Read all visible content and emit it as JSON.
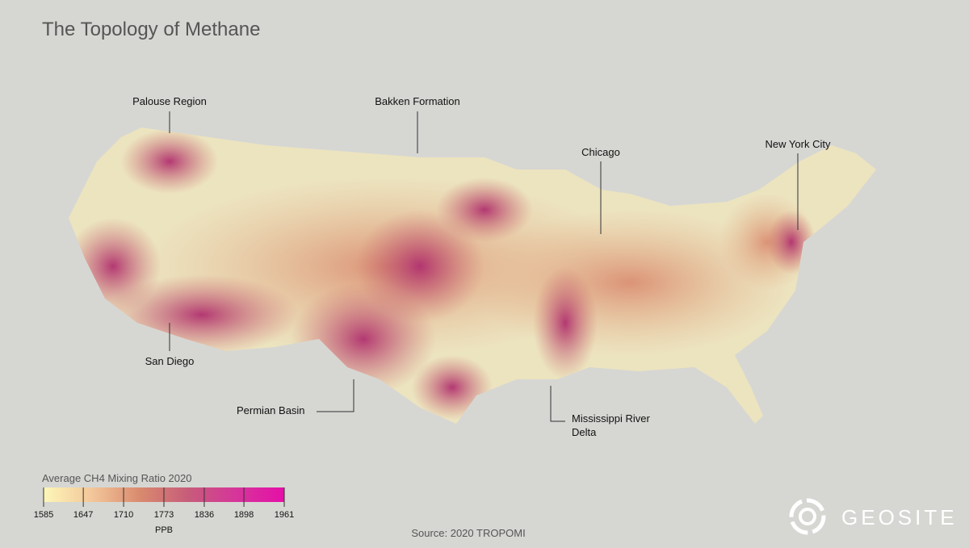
{
  "title": "The Topology of Methane",
  "annotations": [
    {
      "label": "Palouse Region"
    },
    {
      "label": "Bakken Formation"
    },
    {
      "label": "Chicago"
    },
    {
      "label": "New York City"
    },
    {
      "label": "San Diego"
    },
    {
      "label": "Permian Basin"
    },
    {
      "label": "Mississippi River\nDelta"
    }
  ],
  "legend": {
    "title": "Average CH4 Mixing Ratio 2020",
    "ticks": [
      1585,
      1647,
      1710,
      1773,
      1836,
      1898,
      1961
    ],
    "unit": "PPB",
    "colors": [
      "#fdf7b8",
      "#f3c79a",
      "#d98a6e",
      "#c75c7a",
      "#d6359a",
      "#e50fa8"
    ]
  },
  "source": "Source: 2020 TROPOMI",
  "logo": "GEOSITE"
}
